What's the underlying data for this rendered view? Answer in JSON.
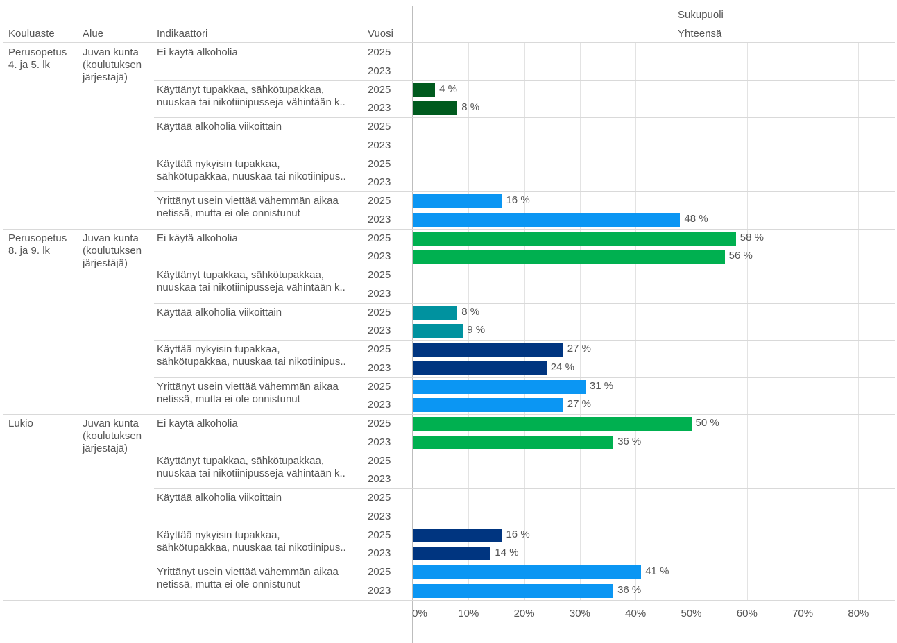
{
  "header": {
    "kouluaste": "Kouluaste",
    "alue": "Alue",
    "indikaattori": "Indikaattori",
    "vuosi": "Vuosi",
    "sukupuoli": "Sukupuoli",
    "yhteensa": "Yhteensä"
  },
  "groups": [
    {
      "kouluaste": [
        "Perusopetus",
        "4. ja 5. lk"
      ],
      "alue": [
        "Juvan kunta",
        "(koulutuksen",
        "järjestäjä)"
      ]
    },
    {
      "kouluaste": [
        "Perusopetus",
        "8. ja 9. lk"
      ],
      "alue": [
        "Juvan kunta",
        "(koulutuksen",
        "järjestäjä)"
      ]
    },
    {
      "kouluaste": [
        "Lukio"
      ],
      "alue": [
        "Juvan kunta",
        "(koulutuksen",
        "järjestäjä)"
      ]
    }
  ],
  "indicators": [
    {
      "key": "alk",
      "lines": [
        "Ei käytä alkoholia"
      ]
    },
    {
      "key": "tup",
      "lines": [
        "Käyttänyt tupakkaa, sähkötupakkaa,",
        "nuuskaa tai nikotiinipusseja vähintään k.."
      ]
    },
    {
      "key": "vko",
      "lines": [
        "Käyttää alkoholia viikoittain"
      ]
    },
    {
      "key": "nyk",
      "lines": [
        "Käyttää nykyisin tupakkaa,",
        "sähkötupakkaa, nuuskaa tai nikotiinipus.."
      ]
    },
    {
      "key": "net",
      "lines": [
        "Yrittänyt usein viettää vähemmän aikaa",
        "netissä, mutta ei ole onnistunut"
      ]
    }
  ],
  "colors": {
    "g0_alk": "#00b050",
    "g0_tup": "#005a1e",
    "g0_vko": "#00929f",
    "g0_nyk": "#003580",
    "g0_net": "#0b96f3",
    "alk": "#00b050",
    "tup": "#005a1e",
    "vko": "#00929f",
    "nyk": "#003580",
    "net": "#0b96f3"
  },
  "chart_data": {
    "type": "bar",
    "orientation": "horizontal",
    "unit": "%",
    "xlim": [
      0,
      86
    ],
    "xticks": [
      "0%",
      "10%",
      "20%",
      "30%",
      "40%",
      "50%",
      "60%",
      "70%",
      "80%"
    ],
    "rows": [
      {
        "group": 0,
        "indicator": "alk",
        "year": "2025",
        "value": null,
        "label": ""
      },
      {
        "group": 0,
        "indicator": "alk",
        "year": "2023",
        "value": null,
        "label": ""
      },
      {
        "group": 0,
        "indicator": "tup",
        "year": "2025",
        "value": 4,
        "label": "4 %"
      },
      {
        "group": 0,
        "indicator": "tup",
        "year": "2023",
        "value": 8,
        "label": "8 %"
      },
      {
        "group": 0,
        "indicator": "vko",
        "year": "2025",
        "value": null,
        "label": ""
      },
      {
        "group": 0,
        "indicator": "vko",
        "year": "2023",
        "value": null,
        "label": ""
      },
      {
        "group": 0,
        "indicator": "nyk",
        "year": "2025",
        "value": null,
        "label": ""
      },
      {
        "group": 0,
        "indicator": "nyk",
        "year": "2023",
        "value": null,
        "label": ""
      },
      {
        "group": 0,
        "indicator": "net",
        "year": "2025",
        "value": 16,
        "label": "16 %"
      },
      {
        "group": 0,
        "indicator": "net",
        "year": "2023",
        "value": 48,
        "label": "48 %"
      },
      {
        "group": 1,
        "indicator": "alk",
        "year": "2025",
        "value": 58,
        "label": "58 %"
      },
      {
        "group": 1,
        "indicator": "alk",
        "year": "2023",
        "value": 56,
        "label": "56 %"
      },
      {
        "group": 1,
        "indicator": "tup",
        "year": "2025",
        "value": null,
        "label": ""
      },
      {
        "group": 1,
        "indicator": "tup",
        "year": "2023",
        "value": null,
        "label": ""
      },
      {
        "group": 1,
        "indicator": "vko",
        "year": "2025",
        "value": 8,
        "label": "8 %"
      },
      {
        "group": 1,
        "indicator": "vko",
        "year": "2023",
        "value": 9,
        "label": "9 %"
      },
      {
        "group": 1,
        "indicator": "nyk",
        "year": "2025",
        "value": 27,
        "label": "27 %"
      },
      {
        "group": 1,
        "indicator": "nyk",
        "year": "2023",
        "value": 24,
        "label": "24 %"
      },
      {
        "group": 1,
        "indicator": "net",
        "year": "2025",
        "value": 31,
        "label": "31 %"
      },
      {
        "group": 1,
        "indicator": "net",
        "year": "2023",
        "value": 27,
        "label": "27 %"
      },
      {
        "group": 2,
        "indicator": "alk",
        "year": "2025",
        "value": 50,
        "label": "50 %"
      },
      {
        "group": 2,
        "indicator": "alk",
        "year": "2023",
        "value": 36,
        "label": "36 %"
      },
      {
        "group": 2,
        "indicator": "tup",
        "year": "2025",
        "value": null,
        "label": ""
      },
      {
        "group": 2,
        "indicator": "tup",
        "year": "2023",
        "value": null,
        "label": ""
      },
      {
        "group": 2,
        "indicator": "vko",
        "year": "2025",
        "value": null,
        "label": ""
      },
      {
        "group": 2,
        "indicator": "vko",
        "year": "2023",
        "value": null,
        "label": ""
      },
      {
        "group": 2,
        "indicator": "nyk",
        "year": "2025",
        "value": 16,
        "label": "16 %"
      },
      {
        "group": 2,
        "indicator": "nyk",
        "year": "2023",
        "value": 14,
        "label": "14 %"
      },
      {
        "group": 2,
        "indicator": "net",
        "year": "2025",
        "value": 41,
        "label": "41 %"
      },
      {
        "group": 2,
        "indicator": "net",
        "year": "2023",
        "value": 36,
        "label": "36 %"
      }
    ]
  }
}
